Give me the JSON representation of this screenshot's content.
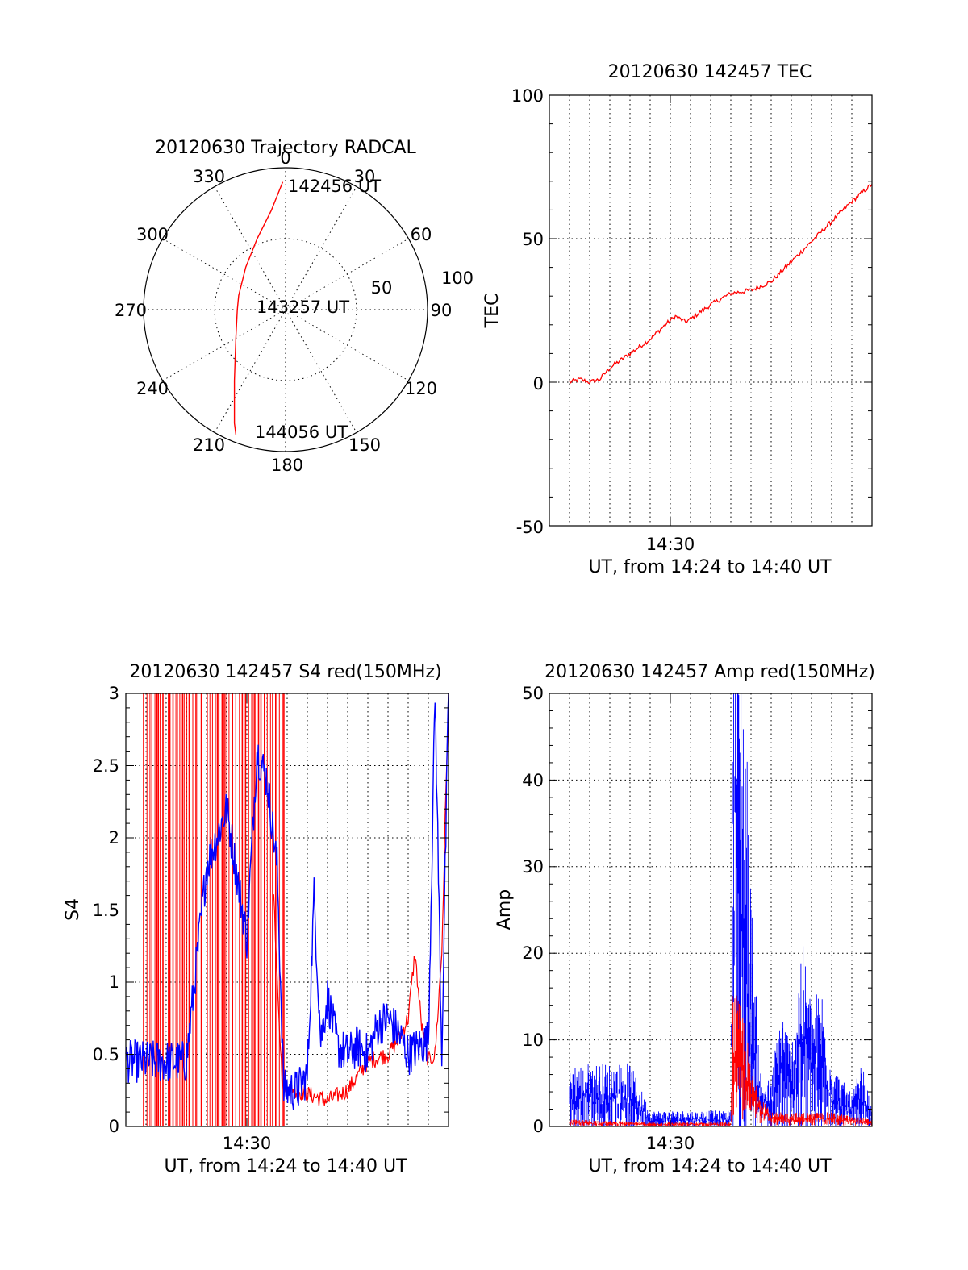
{
  "polar": {
    "title": "20120630 Trajectory RADCAL",
    "azimuth_labels": [
      "0",
      "30",
      "60",
      "90",
      "120",
      "150",
      "180",
      "210",
      "240",
      "270",
      "300",
      "330"
    ],
    "radial_labels": [
      "50",
      "100"
    ],
    "start_label": "142456 UT",
    "mid_label": "143257 UT",
    "end_label": "144056 UT",
    "trace_color": "#ff0000",
    "chart_data": {
      "type": "polar-trajectory",
      "title": "20120630 Trajectory RADCAL",
      "azimuth_ticks_deg": [
        0,
        30,
        60,
        90,
        120,
        150,
        180,
        210,
        240,
        270,
        300,
        330
      ],
      "radial_ticks": [
        50,
        100
      ],
      "rlim": [
        0,
        100
      ],
      "trajectory": [
        {
          "x": -2,
          "y": 90
        },
        {
          "x": -10,
          "y": 70
        },
        {
          "x": -20,
          "y": 50
        },
        {
          "x": -28,
          "y": 30
        },
        {
          "x": -33,
          "y": 10
        },
        {
          "x": -34,
          "y": 0
        },
        {
          "x": -35,
          "y": -20
        },
        {
          "x": -36,
          "y": -50
        },
        {
          "x": -36,
          "y": -80
        },
        {
          "x": -35,
          "y": -88
        }
      ]
    }
  },
  "tec": {
    "title": "20120630 142457 TEC",
    "ylabel": "TEC",
    "xlabel": "UT, from 14:24 to 14:40 UT",
    "x_tick_label": "14:30",
    "y_tick_labels": [
      "-50",
      "0",
      "50",
      "100"
    ],
    "line_color": "#ff0000",
    "chart_data": {
      "type": "line",
      "title": "20120630 142457 TEC",
      "xlabel": "UT, from 14:24 to 14:40 UT",
      "ylabel": "TEC",
      "ylim": [
        -50,
        100
      ],
      "x_range": [
        "14:24",
        "14:40"
      ],
      "grid": true,
      "series": [
        {
          "points": [
            {
              "x": "14:25:00",
              "y": 0
            },
            {
              "x": "14:25:30",
              "y": 1
            },
            {
              "x": "14:26:00",
              "y": 0
            },
            {
              "x": "14:26:30",
              "y": 1
            },
            {
              "x": "14:27:00",
              "y": 5
            },
            {
              "x": "14:28:00",
              "y": 10
            },
            {
              "x": "14:29:00",
              "y": 15
            },
            {
              "x": "14:29:45",
              "y": 20
            },
            {
              "x": "14:30:15",
              "y": 23
            },
            {
              "x": "14:30:45",
              "y": 21
            },
            {
              "x": "14:31:00",
              "y": 22
            },
            {
              "x": "14:32:00",
              "y": 27
            },
            {
              "x": "14:33:00",
              "y": 31
            },
            {
              "x": "14:34:00",
              "y": 32
            },
            {
              "x": "14:35:00",
              "y": 35
            },
            {
              "x": "14:36:00",
              "y": 42
            },
            {
              "x": "14:37:00",
              "y": 49
            },
            {
              "x": "14:38:00",
              "y": 56
            },
            {
              "x": "14:39:00",
              "y": 63
            },
            {
              "x": "14:40:00",
              "y": 69
            }
          ]
        }
      ]
    }
  },
  "s4": {
    "title": "20120630 142457 S4 red(150MHz)",
    "ylabel": "S4",
    "xlabel": "UT, from 14:24 to 14:40 UT",
    "x_tick_label": "14:30",
    "y_tick_labels": [
      "0",
      "0.5",
      "1",
      "1.5",
      "2",
      "2.5",
      "3"
    ],
    "colors": {
      "red": "#ff0000",
      "blue": "#0000ff"
    },
    "chart_data": {
      "type": "line",
      "title": "20120630 142457 S4 red(150MHz)",
      "xlabel": "UT, from 14:24 to 14:40 UT",
      "ylabel": "S4",
      "ylim": [
        0,
        3
      ],
      "x_range": [
        "14:24",
        "14:40"
      ],
      "grid": true,
      "red_saturated_interval": [
        "14:24:00",
        "14:32:00"
      ],
      "series": [
        {
          "color": "red",
          "points": [
            {
              "x": "14:31:20",
              "y": 1.6
            },
            {
              "x": "14:31:45",
              "y": 0.3
            },
            {
              "x": "14:32:30",
              "y": 0.25
            },
            {
              "x": "14:33:30",
              "y": 0.2
            },
            {
              "x": "14:34:00",
              "y": 0.18
            },
            {
              "x": "14:35:00",
              "y": 0.25
            },
            {
              "x": "14:35:30",
              "y": 0.35
            },
            {
              "x": "14:36:00",
              "y": 0.45
            },
            {
              "x": "14:37:00",
              "y": 0.5
            },
            {
              "x": "14:37:30",
              "y": 0.6
            },
            {
              "x": "14:38:00",
              "y": 0.75
            },
            {
              "x": "14:38:20",
              "y": 1.2
            },
            {
              "x": "14:38:40",
              "y": 0.7
            },
            {
              "x": "14:39:00",
              "y": 0.45
            },
            {
              "x": "14:39:20",
              "y": 0.5
            },
            {
              "x": "14:39:40",
              "y": 1.2
            },
            {
              "x": "14:40:00",
              "y": 3.0
            }
          ]
        },
        {
          "color": "blue",
          "points": [
            {
              "x": "14:24:00",
              "y": 0.45
            },
            {
              "x": "14:25:00",
              "y": 0.45
            },
            {
              "x": "14:26:00",
              "y": 0.45
            },
            {
              "x": "14:27:00",
              "y": 0.45
            },
            {
              "x": "14:28:00",
              "y": 1.8
            },
            {
              "x": "14:29:00",
              "y": 2.2
            },
            {
              "x": "14:30:00",
              "y": 1.3
            },
            {
              "x": "14:30:30",
              "y": 2.6
            },
            {
              "x": "14:31:00",
              "y": 2.4
            },
            {
              "x": "14:31:30",
              "y": 1.8
            },
            {
              "x": "14:31:50",
              "y": 0.25
            },
            {
              "x": "14:32:30",
              "y": 0.25
            },
            {
              "x": "14:33:00",
              "y": 0.35
            },
            {
              "x": "14:33:20",
              "y": 1.6
            },
            {
              "x": "14:33:40",
              "y": 0.6
            },
            {
              "x": "14:34:00",
              "y": 0.9
            },
            {
              "x": "14:34:30",
              "y": 0.55
            },
            {
              "x": "14:35:00",
              "y": 0.5
            },
            {
              "x": "14:35:30",
              "y": 0.55
            },
            {
              "x": "14:36:00",
              "y": 0.5
            },
            {
              "x": "14:36:30",
              "y": 0.7
            },
            {
              "x": "14:37:00",
              "y": 0.75
            },
            {
              "x": "14:37:30",
              "y": 0.65
            },
            {
              "x": "14:38:00",
              "y": 0.5
            },
            {
              "x": "14:38:30",
              "y": 0.55
            },
            {
              "x": "14:39:00",
              "y": 0.6
            },
            {
              "x": "14:39:20",
              "y": 3.0
            },
            {
              "x": "14:39:40",
              "y": 0.5
            },
            {
              "x": "14:40:00",
              "y": 3.0
            }
          ]
        }
      ]
    }
  },
  "amp": {
    "title": "20120630 142457 Amp red(150MHz)",
    "ylabel": "Amp",
    "xlabel": "UT, from 14:24 to 14:40 UT",
    "x_tick_label": "14:30",
    "y_tick_labels": [
      "0",
      "10",
      "20",
      "30",
      "40",
      "50"
    ],
    "colors": {
      "red": "#ff0000",
      "blue": "#0000ff"
    },
    "chart_data": {
      "type": "line",
      "title": "20120630 142457 Amp red(150MHz)",
      "xlabel": "UT, from 14:24 to 14:40 UT",
      "ylabel": "Amp",
      "ylim": [
        0,
        50
      ],
      "x_range": [
        "14:24",
        "14:40"
      ],
      "grid": true,
      "series": [
        {
          "color": "blue",
          "points": [
            {
              "x": "14:25:00",
              "y": 4
            },
            {
              "x": "14:26:00",
              "y": 4
            },
            {
              "x": "14:27:00",
              "y": 4
            },
            {
              "x": "14:28:00",
              "y": 4
            },
            {
              "x": "14:29:00",
              "y": 1
            },
            {
              "x": "14:30:00",
              "y": 1
            },
            {
              "x": "14:31:00",
              "y": 1
            },
            {
              "x": "14:32:00",
              "y": 1
            },
            {
              "x": "14:33:00",
              "y": 1
            },
            {
              "x": "14:33:05",
              "y": 40
            },
            {
              "x": "14:33:40",
              "y": 30
            },
            {
              "x": "14:34:00",
              "y": 15
            },
            {
              "x": "14:34:30",
              "y": 3
            },
            {
              "x": "14:35:00",
              "y": 3
            },
            {
              "x": "14:35:30",
              "y": 8
            },
            {
              "x": "14:36:00",
              "y": 5
            },
            {
              "x": "14:36:30",
              "y": 12
            },
            {
              "x": "14:37:00",
              "y": 8
            },
            {
              "x": "14:37:30",
              "y": 9
            },
            {
              "x": "14:38:00",
              "y": 4
            },
            {
              "x": "14:39:00",
              "y": 2
            },
            {
              "x": "14:39:30",
              "y": 4
            },
            {
              "x": "14:40:00",
              "y": 1
            }
          ]
        },
        {
          "color": "red",
          "points": [
            {
              "x": "14:25:00",
              "y": 0.5
            },
            {
              "x": "14:29:00",
              "y": 0.3
            },
            {
              "x": "14:33:00",
              "y": 0.3
            },
            {
              "x": "14:33:05",
              "y": 10
            },
            {
              "x": "14:33:40",
              "y": 8
            },
            {
              "x": "14:34:00",
              "y": 4
            },
            {
              "x": "14:35:00",
              "y": 1
            },
            {
              "x": "14:36:00",
              "y": 1
            },
            {
              "x": "14:37:00",
              "y": 1
            },
            {
              "x": "14:38:00",
              "y": 1
            },
            {
              "x": "14:40:00",
              "y": 0.5
            }
          ]
        }
      ]
    }
  }
}
